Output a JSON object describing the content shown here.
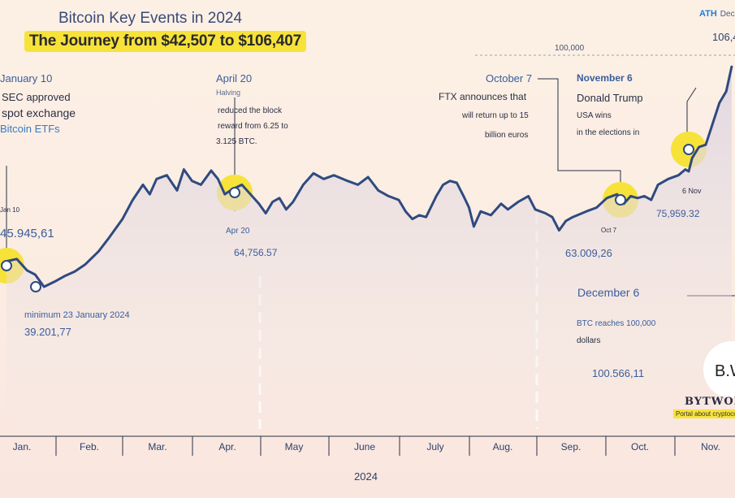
{
  "header": {
    "title": "Bitcoin Key Events in 2024",
    "subtitle": "The Journey from $42,507 to $106,407",
    "ath_label": "ATH",
    "ath_date": "Dec",
    "ath_value": "106,4"
  },
  "colors": {
    "line": "#2f4a80",
    "highlight": "#f7e23a",
    "ath_accent": "#1d7fe0",
    "background": "#fcf0e5"
  },
  "annotations": {
    "jan10": {
      "date": "January 10",
      "line1": "SEC approved",
      "line2": "spot exchange",
      "line3": "Bitcoin ETFs",
      "small_date": "Jan 10",
      "price": "45.945,61"
    },
    "minimum": {
      "label": "minimum 23 January 2024",
      "price": "39.201,77"
    },
    "apr20": {
      "date": "April 20",
      "event": "Halving",
      "line1": "reduced the block",
      "line2": "reward from 6.25 to",
      "line3": "3.125 BTC.",
      "small_date": "Apr 20",
      "price": "64,756.57"
    },
    "oct7": {
      "date": "October 7",
      "line1": "FTX announces that",
      "line2": "will return up to 15",
      "line3": "billion euros",
      "small_date": "Oct 7",
      "price": "63.009,26"
    },
    "nov6": {
      "date": "November 6",
      "line1": "Donald Trump",
      "line2": "USA wins",
      "line3": "in the elections in",
      "small_date": "6 Nov",
      "price": "75,959.32"
    },
    "dec6": {
      "date": "December 6",
      "line1": "BTC reaches 100,000",
      "line2": "dollars",
      "price": "100.566,11"
    },
    "level_100k": "100,000"
  },
  "brand": {
    "logo": "B.W",
    "name": "BYTWOR",
    "tagline": "Portal about cryptocu"
  },
  "chart_data": {
    "type": "line",
    "title": "Bitcoin Key Events in 2024",
    "xlabel": "2024",
    "ylabel": "",
    "categories": [
      "Jan.",
      "Feb.",
      "Mar.",
      "Apr.",
      "May",
      "June",
      "July",
      "Aug.",
      "Sep.",
      "Oct.",
      "Nov."
    ],
    "ylim": [
      30000,
      110000
    ],
    "grid": false,
    "series": [
      {
        "values": [
          [
            0.0,
            45900
          ],
          [
            0.15,
            46500
          ],
          [
            0.3,
            43500
          ],
          [
            0.42,
            42400
          ],
          [
            0.55,
            39200
          ],
          [
            0.7,
            40500
          ],
          [
            0.85,
            42000
          ],
          [
            1.0,
            43200
          ],
          [
            1.15,
            45000
          ],
          [
            1.35,
            48500
          ],
          [
            1.5,
            52000
          ],
          [
            1.7,
            57000
          ],
          [
            1.85,
            62000
          ],
          [
            2.0,
            66000
          ],
          [
            2.1,
            63500
          ],
          [
            2.2,
            67500
          ],
          [
            2.35,
            68500
          ],
          [
            2.5,
            64500
          ],
          [
            2.6,
            70000
          ],
          [
            2.72,
            67000
          ],
          [
            2.85,
            66000
          ],
          [
            3.0,
            69700
          ],
          [
            3.1,
            67500
          ],
          [
            3.2,
            63500
          ],
          [
            3.3,
            64700
          ],
          [
            3.45,
            66000
          ],
          [
            3.6,
            63000
          ],
          [
            3.7,
            61000
          ],
          [
            3.8,
            58500
          ],
          [
            3.9,
            61500
          ],
          [
            4.0,
            62500
          ],
          [
            4.1,
            59500
          ],
          [
            4.2,
            61500
          ],
          [
            4.35,
            66000
          ],
          [
            4.5,
            69000
          ],
          [
            4.65,
            67500
          ],
          [
            4.8,
            68500
          ],
          [
            5.0,
            67000
          ],
          [
            5.15,
            66000
          ],
          [
            5.3,
            68000
          ],
          [
            5.45,
            64500
          ],
          [
            5.6,
            63000
          ],
          [
            5.75,
            62000
          ],
          [
            5.85,
            59000
          ],
          [
            5.95,
            57000
          ],
          [
            6.05,
            58000
          ],
          [
            6.15,
            57500
          ],
          [
            6.3,
            63000
          ],
          [
            6.4,
            66000
          ],
          [
            6.5,
            67000
          ],
          [
            6.6,
            66500
          ],
          [
            6.7,
            63000
          ],
          [
            6.78,
            60000
          ],
          [
            6.85,
            55000
          ],
          [
            6.95,
            59000
          ],
          [
            7.1,
            58000
          ],
          [
            7.25,
            61000
          ],
          [
            7.35,
            59500
          ],
          [
            7.5,
            61500
          ],
          [
            7.65,
            63000
          ],
          [
            7.75,
            59500
          ],
          [
            7.9,
            58500
          ],
          [
            8.0,
            57500
          ],
          [
            8.1,
            54000
          ],
          [
            8.2,
            56500
          ],
          [
            8.3,
            57500
          ],
          [
            8.5,
            59000
          ],
          [
            8.65,
            60000
          ],
          [
            8.8,
            62500
          ],
          [
            8.95,
            63500
          ],
          [
            9.05,
            61000
          ],
          [
            9.15,
            63000
          ],
          [
            9.25,
            62500
          ],
          [
            9.35,
            63000
          ],
          [
            9.45,
            62000
          ],
          [
            9.55,
            66000
          ],
          [
            9.7,
            67500
          ],
          [
            9.85,
            68500
          ],
          [
            9.95,
            70000
          ],
          [
            10.0,
            69500
          ],
          [
            10.05,
            73000
          ],
          [
            10.15,
            75900
          ],
          [
            10.25,
            76500
          ],
          [
            10.35,
            82000
          ],
          [
            10.45,
            87500
          ],
          [
            10.55,
            90500
          ],
          [
            10.63,
            97000
          ],
          [
            10.7,
            99500
          ],
          [
            10.8,
            98000
          ],
          [
            10.88,
            95000
          ]
        ]
      }
    ]
  }
}
